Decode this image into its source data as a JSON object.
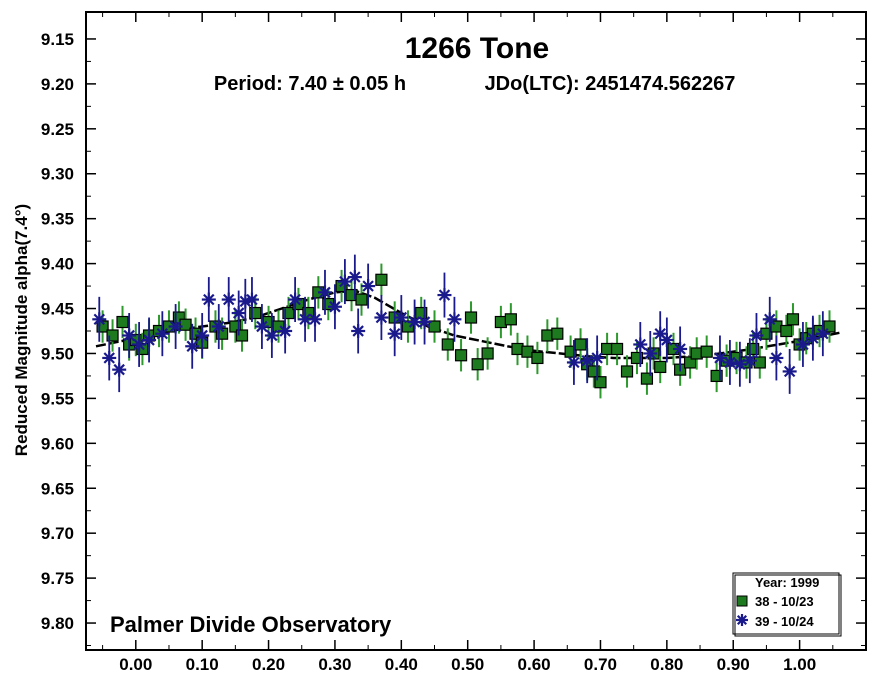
{
  "chart_data": {
    "type": "scatter",
    "title": "1266 Tone",
    "subtitle_period": "Period: 7.40 ± 0.05 h",
    "subtitle_epoch": "JDo(LTC): 2451474.562267",
    "ylabel": "Reduced Magnitude alpha(7.4°)",
    "xlabel": "",
    "footer": "Palmer Divide Observatory",
    "xlim": [
      -0.075,
      1.1
    ],
    "ylim": [
      9.83,
      9.12
    ],
    "y_inverted": true,
    "x_ticks": [
      "0.00",
      "0.10",
      "0.20",
      "0.30",
      "0.40",
      "0.50",
      "0.60",
      "0.70",
      "0.80",
      "0.90",
      "1.00"
    ],
    "y_ticks": [
      "9.15",
      "9.20",
      "9.25",
      "9.30",
      "9.35",
      "9.40",
      "9.45",
      "9.50",
      "9.55",
      "9.60",
      "9.65",
      "9.70",
      "9.75",
      "9.80"
    ],
    "legend": {
      "title": "Year: 1999",
      "placement": "bottom-right",
      "entries": [
        "38 - 10/23",
        "39 - 10/24"
      ]
    },
    "colors": {
      "series38_fill": "#1e7a1e",
      "series38_errbar": "#2e9a2e",
      "series39": "#1a1a8c",
      "fit": "#000000"
    },
    "series": [
      {
        "name": "38 - 10/23",
        "marker": "square",
        "points": [
          [
            -0.05,
            9.47
          ],
          [
            -0.035,
            9.48
          ],
          [
            -0.02,
            9.465
          ],
          [
            -0.01,
            9.49
          ],
          [
            0.0,
            9.485
          ],
          [
            0.01,
            9.495
          ],
          [
            0.02,
            9.48
          ],
          [
            0.035,
            9.475
          ],
          [
            0.05,
            9.47
          ],
          [
            0.065,
            9.46
          ],
          [
            0.075,
            9.468
          ],
          [
            0.09,
            9.478
          ],
          [
            0.1,
            9.488
          ],
          [
            0.12,
            9.47
          ],
          [
            0.13,
            9.478
          ],
          [
            0.15,
            9.47
          ],
          [
            0.16,
            9.48
          ],
          [
            0.18,
            9.455
          ],
          [
            0.2,
            9.465
          ],
          [
            0.215,
            9.47
          ],
          [
            0.23,
            9.455
          ],
          [
            0.245,
            9.445
          ],
          [
            0.26,
            9.455
          ],
          [
            0.275,
            9.432
          ],
          [
            0.29,
            9.445
          ],
          [
            0.31,
            9.425
          ],
          [
            0.325,
            9.435
          ],
          [
            0.34,
            9.44
          ],
          [
            0.37,
            9.418
          ],
          [
            0.39,
            9.46
          ],
          [
            0.41,
            9.47
          ],
          [
            0.43,
            9.455
          ],
          [
            0.45,
            9.47
          ],
          [
            0.47,
            9.49
          ],
          [
            0.49,
            9.502
          ],
          [
            0.505,
            9.46
          ],
          [
            0.515,
            9.512
          ],
          [
            0.53,
            9.5
          ],
          [
            0.55,
            9.465
          ],
          [
            0.565,
            9.462
          ],
          [
            0.575,
            9.495
          ],
          [
            0.59,
            9.498
          ],
          [
            0.605,
            9.505
          ],
          [
            0.62,
            9.48
          ],
          [
            0.635,
            9.478
          ],
          [
            0.655,
            9.498
          ],
          [
            0.67,
            9.49
          ],
          [
            0.68,
            9.512
          ],
          [
            0.69,
            9.52
          ],
          [
            0.7,
            9.532
          ],
          [
            0.71,
            9.495
          ],
          [
            0.725,
            9.495
          ],
          [
            0.74,
            9.52
          ],
          [
            0.755,
            9.505
          ],
          [
            0.77,
            9.528
          ],
          [
            0.78,
            9.5
          ],
          [
            0.79,
            9.515
          ],
          [
            0.81,
            9.495
          ],
          [
            0.82,
            9.518
          ],
          [
            0.835,
            9.51
          ],
          [
            0.845,
            9.5
          ],
          [
            0.86,
            9.498
          ],
          [
            0.875,
            9.525
          ],
          [
            0.89,
            9.508
          ],
          [
            0.905,
            9.505
          ],
          [
            0.92,
            9.51
          ],
          [
            0.93,
            9.495
          ],
          [
            0.94,
            9.51
          ],
          [
            0.95,
            9.478
          ],
          [
            0.965,
            9.47
          ],
          [
            0.98,
            9.475
          ],
          [
            0.99,
            9.462
          ],
          [
            1.0,
            9.49
          ],
          [
            1.01,
            9.483
          ],
          [
            1.02,
            9.478
          ],
          [
            1.03,
            9.475
          ],
          [
            1.045,
            9.47
          ]
        ]
      },
      {
        "name": "39 - 10/24",
        "marker": "asterisk",
        "points": [
          [
            -0.055,
            9.462
          ],
          [
            -0.04,
            9.505
          ],
          [
            -0.025,
            9.518
          ],
          [
            -0.01,
            9.48
          ],
          [
            0.005,
            9.49
          ],
          [
            0.02,
            9.485
          ],
          [
            0.04,
            9.478
          ],
          [
            0.06,
            9.47
          ],
          [
            0.085,
            9.492
          ],
          [
            0.1,
            9.48
          ],
          [
            0.11,
            9.44
          ],
          [
            0.125,
            9.47
          ],
          [
            0.14,
            9.44
          ],
          [
            0.155,
            9.455
          ],
          [
            0.165,
            9.442
          ],
          [
            0.175,
            9.44
          ],
          [
            0.19,
            9.47
          ],
          [
            0.205,
            9.48
          ],
          [
            0.225,
            9.475
          ],
          [
            0.24,
            9.44
          ],
          [
            0.255,
            9.462
          ],
          [
            0.27,
            9.462
          ],
          [
            0.285,
            9.432
          ],
          [
            0.3,
            9.448
          ],
          [
            0.315,
            9.42
          ],
          [
            0.33,
            9.415
          ],
          [
            0.335,
            9.475
          ],
          [
            0.35,
            9.425
          ],
          [
            0.37,
            9.46
          ],
          [
            0.39,
            9.478
          ],
          [
            0.4,
            9.46
          ],
          [
            0.42,
            9.465
          ],
          [
            0.435,
            9.465
          ],
          [
            0.465,
            9.435
          ],
          [
            0.48,
            9.462
          ],
          [
            0.66,
            9.51
          ],
          [
            0.68,
            9.508
          ],
          [
            0.695,
            9.505
          ],
          [
            0.76,
            9.49
          ],
          [
            0.775,
            9.5
          ],
          [
            0.79,
            9.478
          ],
          [
            0.8,
            9.485
          ],
          [
            0.82,
            9.495
          ],
          [
            0.88,
            9.505
          ],
          [
            0.895,
            9.51
          ],
          [
            0.91,
            9.512
          ],
          [
            0.925,
            9.508
          ],
          [
            0.935,
            9.48
          ],
          [
            0.955,
            9.462
          ],
          [
            0.965,
            9.505
          ],
          [
            0.985,
            9.52
          ],
          [
            1.005,
            9.49
          ],
          [
            1.02,
            9.483
          ],
          [
            1.035,
            9.478
          ]
        ]
      }
    ],
    "fit_curve": [
      [
        -0.06,
        9.492
      ],
      [
        -0.02,
        9.486
      ],
      [
        0.02,
        9.48
      ],
      [
        0.06,
        9.474
      ],
      [
        0.1,
        9.47
      ],
      [
        0.14,
        9.466
      ],
      [
        0.18,
        9.46
      ],
      [
        0.22,
        9.45
      ],
      [
        0.26,
        9.44
      ],
      [
        0.3,
        9.432
      ],
      [
        0.33,
        9.43
      ],
      [
        0.36,
        9.438
      ],
      [
        0.4,
        9.455
      ],
      [
        0.44,
        9.47
      ],
      [
        0.48,
        9.48
      ],
      [
        0.52,
        9.486
      ],
      [
        0.56,
        9.492
      ],
      [
        0.6,
        9.497
      ],
      [
        0.64,
        9.5
      ],
      [
        0.68,
        9.503
      ],
      [
        0.72,
        9.505
      ],
      [
        0.76,
        9.505
      ],
      [
        0.8,
        9.505
      ],
      [
        0.84,
        9.503
      ],
      [
        0.88,
        9.5
      ],
      [
        0.92,
        9.496
      ],
      [
        0.96,
        9.491
      ],
      [
        1.0,
        9.486
      ],
      [
        1.04,
        9.48
      ],
      [
        1.06,
        9.477
      ]
    ]
  }
}
